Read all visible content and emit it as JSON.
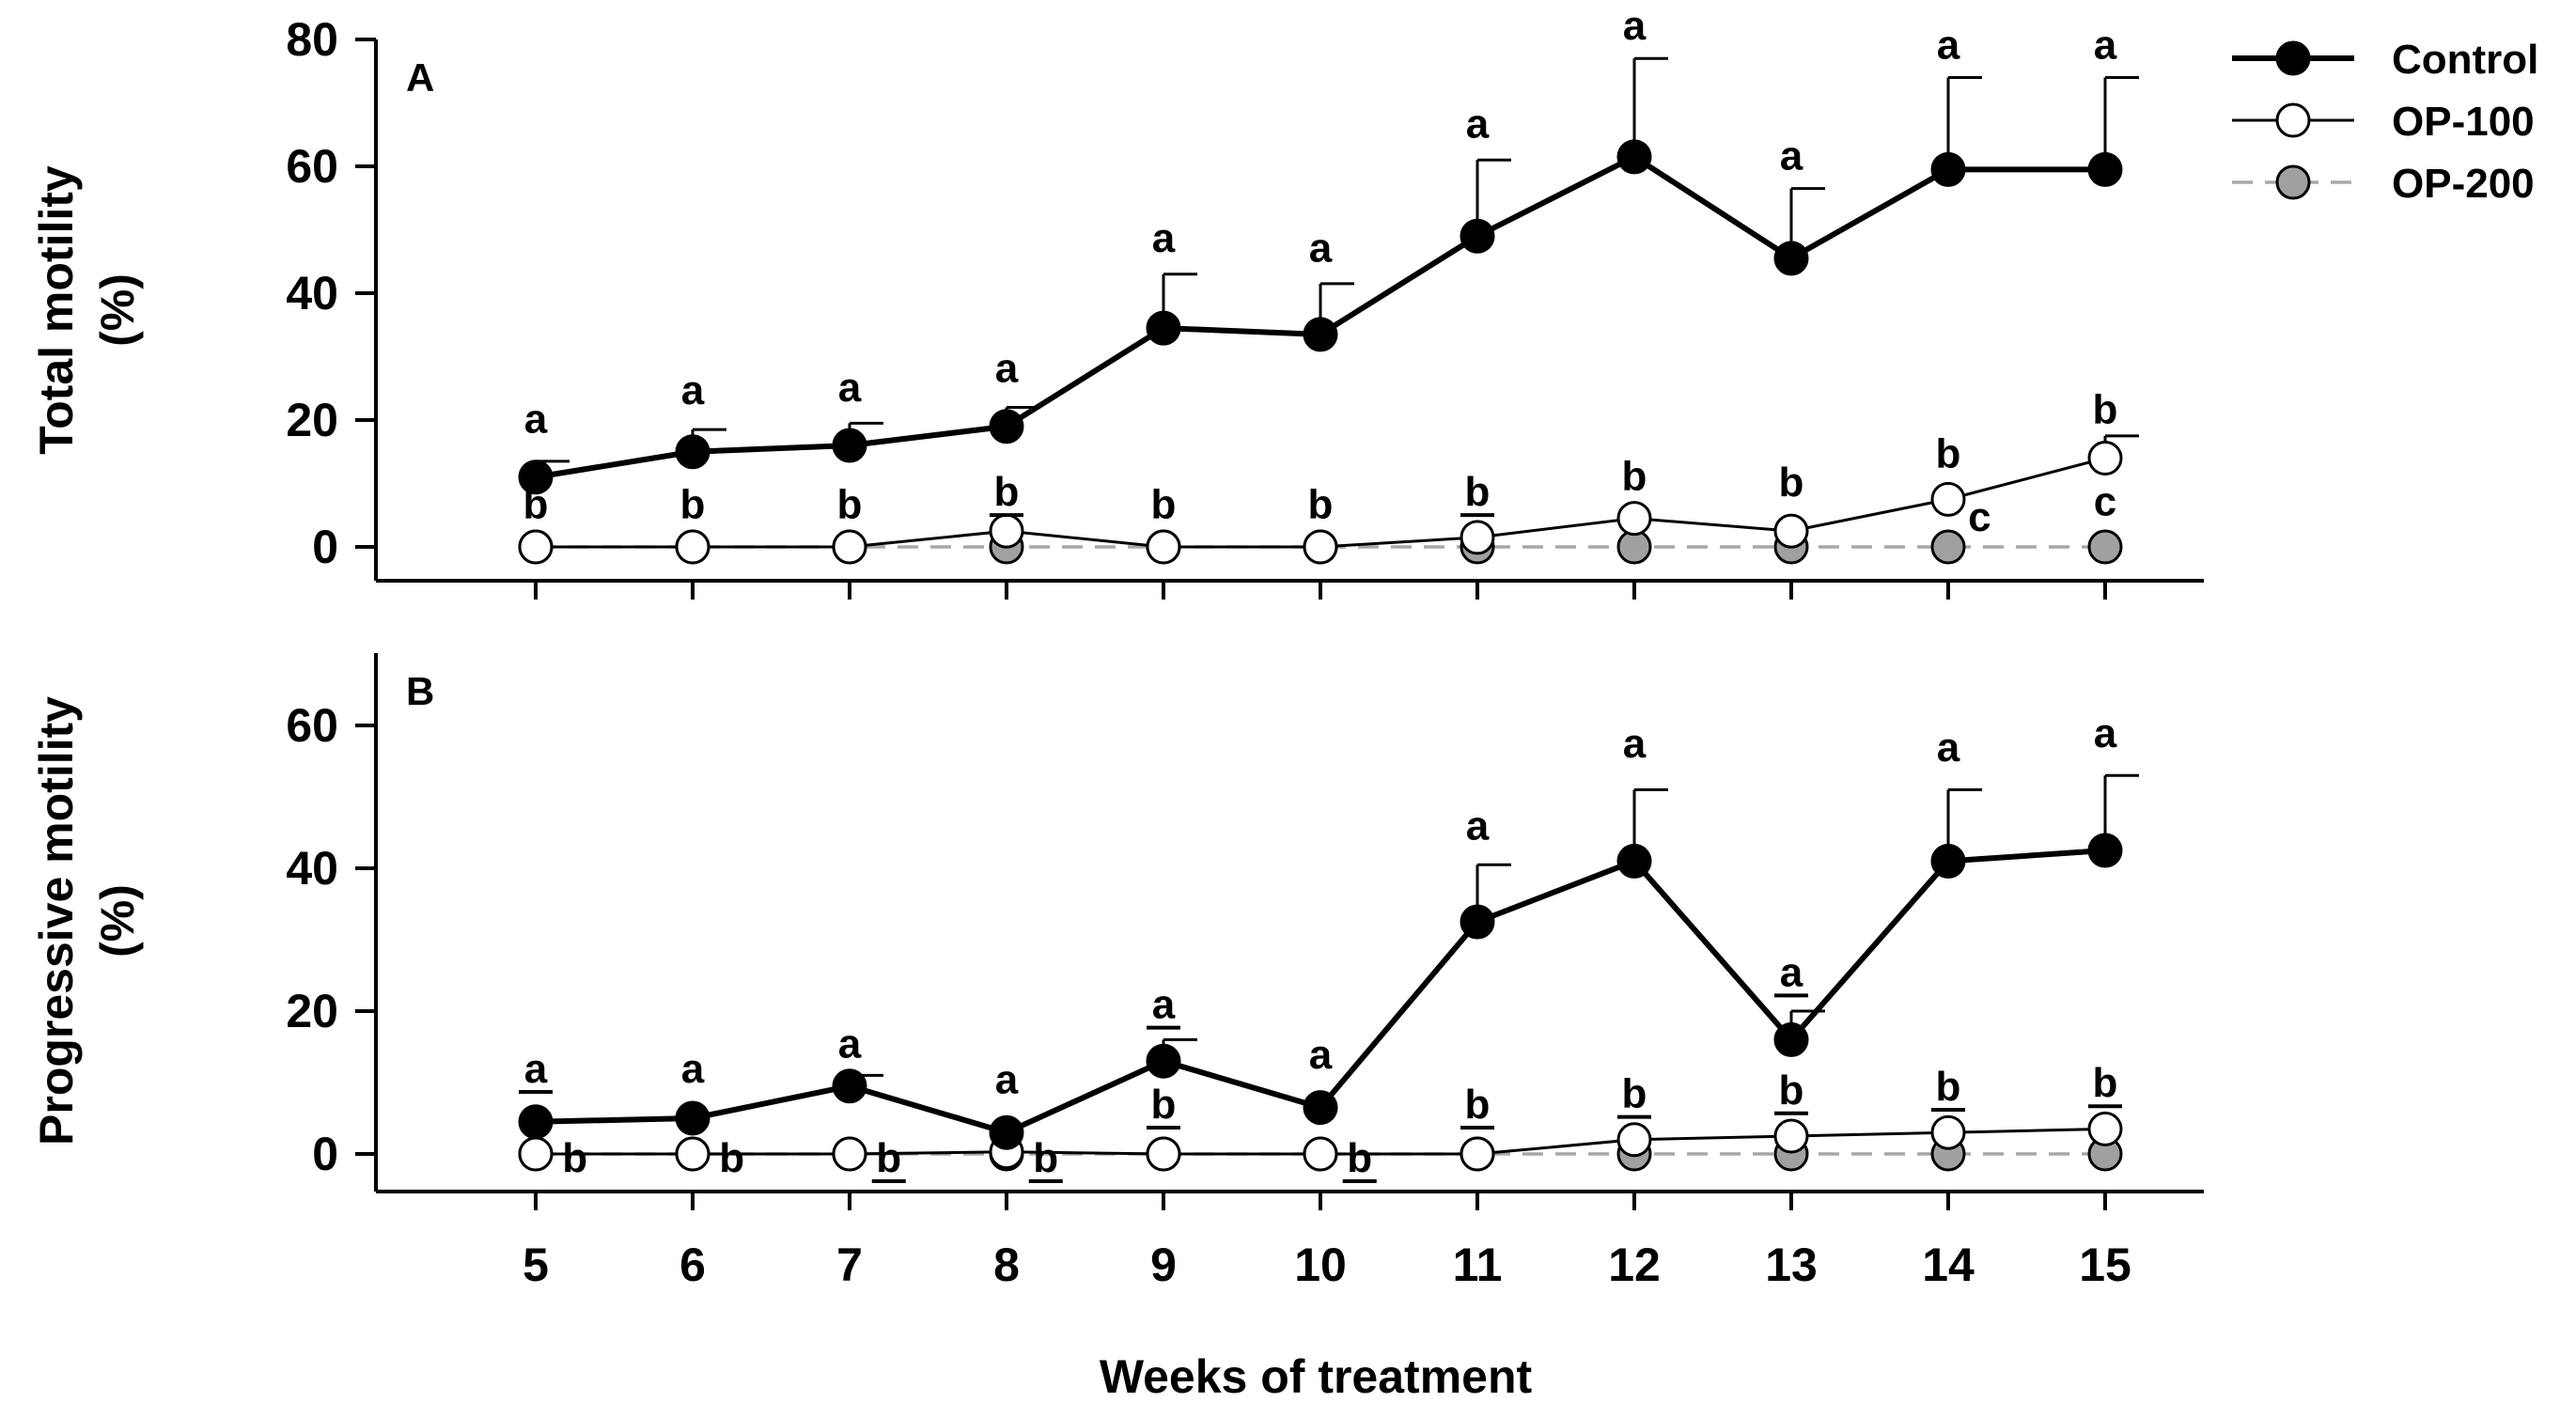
{
  "chart_data": [
    {
      "type": "line",
      "panel": "A",
      "ylabel_line1": "Total motility",
      "ylabel_line2": "(%)",
      "xlabel": "Weeks of treatment",
      "x": [
        5,
        6,
        7,
        8,
        9,
        10,
        11,
        12,
        13,
        14,
        15
      ],
      "xlim": [
        4,
        16
      ],
      "ylim": [
        -5,
        80
      ],
      "yticks": [
        0,
        20,
        40,
        60,
        80
      ],
      "series": [
        {
          "name": "Control",
          "style": "control",
          "values": [
            11,
            15,
            16,
            19,
            34.5,
            33.5,
            49,
            61.5,
            45.5,
            59.5,
            59.5
          ],
          "err": [
            2.5,
            3.5,
            3.5,
            3,
            8.5,
            8,
            12,
            15.5,
            11,
            14.5,
            14.5
          ]
        },
        {
          "name": "OP-100",
          "style": "op100",
          "values": [
            0,
            0,
            0,
            2.5,
            0,
            0,
            1.5,
            4.5,
            2.5,
            7.5,
            14
          ],
          "err": [
            0,
            0,
            0,
            0,
            0,
            0,
            0,
            0,
            0,
            0,
            3.5
          ]
        },
        {
          "name": "OP-200",
          "style": "op200",
          "values": [
            0,
            0,
            0,
            0,
            0,
            0,
            0,
            0,
            0,
            0,
            0
          ],
          "err": [
            0,
            0,
            0,
            0,
            0,
            0,
            0,
            0,
            0,
            0,
            0
          ]
        }
      ],
      "annotations": [
        {
          "text": "a",
          "x": 5,
          "y": 18,
          "underline": false
        },
        {
          "text": "a",
          "x": 6,
          "y": 22.5,
          "underline": false
        },
        {
          "text": "a",
          "x": 7,
          "y": 23,
          "underline": false
        },
        {
          "text": "a",
          "x": 8,
          "y": 26,
          "underline": false
        },
        {
          "text": "a",
          "x": 9,
          "y": 46.5,
          "underline": false
        },
        {
          "text": "a",
          "x": 10,
          "y": 45,
          "underline": false
        },
        {
          "text": "a",
          "x": 11,
          "y": 64.5,
          "underline": false
        },
        {
          "text": "a",
          "x": 12,
          "y": 80,
          "underline": false
        },
        {
          "text": "a",
          "x": 13,
          "y": 59.5,
          "underline": false
        },
        {
          "text": "a",
          "x": 14,
          "y": 77,
          "underline": false
        },
        {
          "text": "a",
          "x": 15,
          "y": 77,
          "underline": false
        },
        {
          "text": "b",
          "x": 5,
          "y": 4.5,
          "underline": false
        },
        {
          "text": "b",
          "x": 6,
          "y": 4.5,
          "underline": false
        },
        {
          "text": "b",
          "x": 7,
          "y": 4.5,
          "underline": false
        },
        {
          "text": "b",
          "x": 8,
          "y": 6.5,
          "underline": true
        },
        {
          "text": "b",
          "x": 9,
          "y": 4.5,
          "underline": false
        },
        {
          "text": "b",
          "x": 10,
          "y": 4.5,
          "underline": false
        },
        {
          "text": "b",
          "x": 11,
          "y": 6.5,
          "underline": true
        },
        {
          "text": "b",
          "x": 12,
          "y": 9,
          "underline": false
        },
        {
          "text": "b",
          "x": 13,
          "y": 8,
          "underline": false
        },
        {
          "text": "b",
          "x": 14,
          "y": 12.5,
          "underline": false
        },
        {
          "text": "b",
          "x": 15,
          "y": 19.5,
          "underline": false
        },
        {
          "text": "c",
          "x": 15,
          "y": 5,
          "underline": false
        },
        {
          "text": "c",
          "x": 14.2,
          "y": 2.5,
          "underline": false
        }
      ]
    },
    {
      "type": "line",
      "panel": "B",
      "ylabel_line1": "Progressive motility",
      "ylabel_line2": "(%)",
      "xlabel": "Weeks of treatment",
      "x": [
        5,
        6,
        7,
        8,
        9,
        10,
        11,
        12,
        13,
        14,
        15
      ],
      "xlim": [
        4,
        16
      ],
      "ylim": [
        -5,
        70
      ],
      "yticks": [
        0,
        20,
        40,
        60
      ],
      "series": [
        {
          "name": "Control",
          "style": "control",
          "values": [
            4.5,
            5,
            9.5,
            3,
            13,
            6.5,
            32.5,
            41,
            16,
            41,
            42.5
          ],
          "err": [
            0,
            0,
            1.5,
            0,
            3,
            0,
            8,
            10,
            4,
            10,
            10.5
          ]
        },
        {
          "name": "OP-100",
          "style": "op100",
          "values": [
            0,
            0,
            0,
            0.3,
            0,
            0,
            0,
            2,
            2.5,
            3,
            3.5
          ],
          "err": [
            0,
            0,
            0,
            0,
            0,
            0,
            0,
            0,
            0,
            0,
            0
          ]
        },
        {
          "name": "OP-200",
          "style": "op200",
          "values": [
            0,
            0,
            0,
            0,
            0,
            0,
            0,
            0,
            0,
            0,
            0
          ],
          "err": [
            0,
            0,
            0,
            0,
            0,
            0,
            0,
            0,
            0,
            0,
            0
          ]
        }
      ],
      "annotations": [
        {
          "text": "a",
          "x": 5,
          "y": 10,
          "underline": true
        },
        {
          "text": "a",
          "x": 6,
          "y": 10,
          "underline": false
        },
        {
          "text": "a",
          "x": 7,
          "y": 13.5,
          "underline": false
        },
        {
          "text": "a",
          "x": 8,
          "y": 8.5,
          "underline": false
        },
        {
          "text": "a",
          "x": 9,
          "y": 19,
          "underline": true
        },
        {
          "text": "a",
          "x": 10,
          "y": 12,
          "underline": false
        },
        {
          "text": "a",
          "x": 11,
          "y": 44,
          "underline": false
        },
        {
          "text": "a",
          "x": 12,
          "y": 55.5,
          "underline": false
        },
        {
          "text": "a",
          "x": 13,
          "y": 23.5,
          "underline": true
        },
        {
          "text": "a",
          "x": 14,
          "y": 55,
          "underline": false
        },
        {
          "text": "a",
          "x": 15,
          "y": 57,
          "underline": false
        },
        {
          "text": "b",
          "x": 5.25,
          "y": -2.5,
          "underline": false
        },
        {
          "text": "b",
          "x": 6.25,
          "y": -2.5,
          "underline": false
        },
        {
          "text": "b",
          "x": 7.25,
          "y": -2.5,
          "underline": true
        },
        {
          "text": "b",
          "x": 8.25,
          "y": -2.5,
          "underline": true
        },
        {
          "text": "b",
          "x": 9,
          "y": 5,
          "underline": true
        },
        {
          "text": "b",
          "x": 10.25,
          "y": -2.5,
          "underline": true
        },
        {
          "text": "b",
          "x": 11,
          "y": 5,
          "underline": true
        },
        {
          "text": "b",
          "x": 12,
          "y": 6.5,
          "underline": true
        },
        {
          "text": "b",
          "x": 13,
          "y": 7,
          "underline": true
        },
        {
          "text": "b",
          "x": 14,
          "y": 7.5,
          "underline": true
        },
        {
          "text": "b",
          "x": 15,
          "y": 8,
          "underline": true
        }
      ]
    }
  ],
  "legend": [
    {
      "label": "Control",
      "style": "control"
    },
    {
      "label": "OP-100",
      "style": "op100"
    },
    {
      "label": "OP-200",
      "style": "op200"
    }
  ],
  "colors": {
    "control_fill": "#000000",
    "op100_fill": "#ffffff",
    "op200_fill": "#a0a0a0",
    "op200_line": "#a8a8a8",
    "axis": "#000000"
  }
}
